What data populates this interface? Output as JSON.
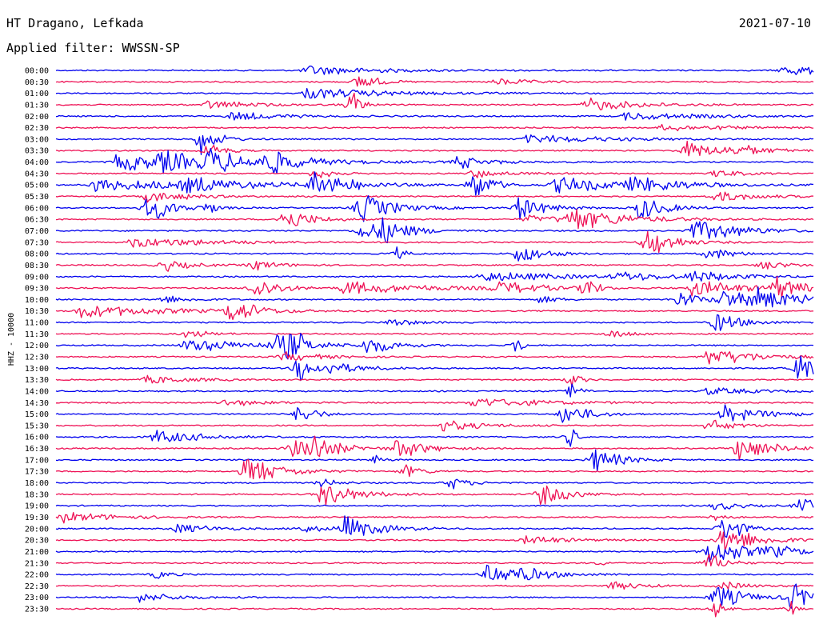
{
  "header": {
    "station": "HT Dragano, Lefkada",
    "date": "2021-07-10",
    "filter": "Applied filter: WWSSN-SP"
  },
  "chart_data": {
    "type": "line",
    "title": "HT Dragano, Lefkada",
    "ylabel": "HHZ - 10000",
    "categories": [
      "00:00",
      "00:30",
      "01:00",
      "01:30",
      "02:00",
      "02:30",
      "03:00",
      "03:30",
      "04:00",
      "04:30",
      "05:00",
      "05:30",
      "06:00",
      "06:30",
      "07:00",
      "07:30",
      "08:00",
      "08:30",
      "09:00",
      "09:30",
      "10:00",
      "10:30",
      "11:00",
      "11:30",
      "12:00",
      "12:30",
      "13:00",
      "13:30",
      "14:00",
      "14:30",
      "15:00",
      "15:30",
      "16:00",
      "16:30",
      "17:00",
      "17:30",
      "18:00",
      "18:30",
      "19:00",
      "19:30",
      "20:00",
      "20:30",
      "21:00",
      "21:30",
      "22:00",
      "22:30",
      "23:00",
      "23:30"
    ],
    "colors": [
      "#0000ee",
      "#ee1155"
    ],
    "grid": false,
    "events": [
      [
        [
          33,
          0.08,
          1.2
        ],
        [
          96,
          0.08,
          1.1
        ]
      ],
      [
        [
          40,
          0.02,
          2.5
        ],
        [
          58,
          0.04,
          0.8
        ]
      ],
      [
        [
          33,
          0.1,
          1.2
        ]
      ],
      [
        [
          39,
          0.01,
          4.0
        ],
        [
          70,
          0.06,
          1.5
        ],
        [
          20,
          0.05,
          1.0
        ]
      ],
      [
        [
          23,
          0.06,
          1.0
        ],
        [
          75,
          0.1,
          0.8
        ]
      ],
      [
        [
          80,
          0.08,
          0.8
        ]
      ],
      [
        [
          19,
          0.02,
          3.5
        ],
        [
          62,
          0.1,
          1.0
        ]
      ],
      [
        [
          20,
          0.02,
          2.0
        ],
        [
          83,
          0.05,
          2.0
        ],
        [
          90,
          0.03,
          1.0
        ]
      ],
      [
        [
          8,
          0.15,
          1.8
        ],
        [
          14,
          0.04,
          1.5
        ],
        [
          20,
          0.04,
          2.0
        ],
        [
          28,
          0.03,
          3.0
        ],
        [
          53,
          0.03,
          1.5
        ]
      ],
      [
        [
          34,
          0.02,
          1.5
        ],
        [
          55,
          0.04,
          1.0
        ],
        [
          87,
          0.03,
          1.0
        ]
      ],
      [
        [
          5,
          0.12,
          1.5
        ],
        [
          17,
          0.07,
          1.5
        ],
        [
          34,
          0.04,
          3.5
        ],
        [
          55,
          0.02,
          4.5
        ],
        [
          66,
          0.08,
          2.0
        ],
        [
          76,
          0.06,
          1.5
        ]
      ],
      [
        [
          12,
          0.05,
          1.3
        ],
        [
          87,
          0.05,
          1.2
        ]
      ],
      [
        [
          12,
          0.03,
          3.5
        ],
        [
          40,
          0.04,
          3.5
        ],
        [
          61,
          0.03,
          3.0
        ],
        [
          77,
          0.03,
          3.0
        ],
        [
          20,
          0.01,
          1.5
        ]
      ],
      [
        [
          30,
          0.03,
          3.0
        ],
        [
          68,
          0.06,
          2.5
        ],
        [
          62,
          0.08,
          0.8
        ]
      ],
      [
        [
          40,
          0.04,
          2.0
        ],
        [
          43,
          0.03,
          2.2
        ],
        [
          84,
          0.06,
          2.5
        ]
      ],
      [
        [
          10,
          0.1,
          1.2
        ],
        [
          78,
          0.03,
          4.0
        ]
      ],
      [
        [
          45,
          0.01,
          1.5
        ],
        [
          61,
          0.03,
          2.5
        ],
        [
          86,
          0.03,
          1.5
        ]
      ],
      [
        [
          14,
          0.03,
          1.5
        ],
        [
          26,
          0.03,
          1.2
        ],
        [
          93,
          0.03,
          1.2
        ]
      ],
      [
        [
          56,
          0.1,
          1.2
        ],
        [
          74,
          0.06,
          1.0
        ],
        [
          84,
          0.05,
          1.2
        ]
      ],
      [
        [
          26,
          0.03,
          2.8
        ],
        [
          38,
          0.1,
          1.5
        ],
        [
          58,
          0.05,
          1.5
        ],
        [
          70,
          0.01,
          3.5
        ],
        [
          84,
          0.06,
          2.0
        ],
        [
          95,
          0.03,
          2.5
        ]
      ],
      [
        [
          14,
          0.03,
          1.0
        ],
        [
          64,
          0.02,
          1.0
        ],
        [
          82,
          0.03,
          2.0
        ],
        [
          88,
          0.04,
          2.0
        ],
        [
          92,
          0.07,
          2.0
        ]
      ],
      [
        [
          3,
          0.1,
          1.5
        ],
        [
          23,
          0.03,
          3.0
        ]
      ],
      [
        [
          44,
          0.03,
          1.0
        ],
        [
          87,
          0.03,
          2.5
        ]
      ],
      [
        [
          17,
          0.03,
          1.0
        ],
        [
          73,
          0.03,
          1.0
        ]
      ],
      [
        [
          17,
          0.08,
          1.5
        ],
        [
          29,
          0.04,
          2.0
        ],
        [
          31,
          0.01,
          5.0
        ],
        [
          41,
          0.03,
          2.0
        ],
        [
          61,
          0.005,
          3.0
        ]
      ],
      [
        [
          30,
          0.05,
          1.0
        ],
        [
          86,
          0.06,
          2.0
        ]
      ],
      [
        [
          32,
          0.02,
          3.5
        ],
        [
          36,
          0.05,
          1.0
        ],
        [
          98,
          0.03,
          3.5
        ]
      ],
      [
        [
          12,
          0.05,
          1.0
        ],
        [
          68,
          0.01,
          2.0
        ]
      ],
      [
        [
          68,
          0.01,
          2.0
        ],
        [
          86,
          0.05,
          1.0
        ]
      ],
      [
        [
          55,
          0.08,
          1.2
        ],
        [
          22,
          0.05,
          0.8
        ]
      ],
      [
        [
          32,
          0.02,
          2.5
        ],
        [
          67,
          0.03,
          2.5
        ],
        [
          88,
          0.05,
          2.0
        ]
      ],
      [
        [
          51,
          0.05,
          1.2
        ],
        [
          86,
          0.03,
          1.5
        ]
      ],
      [
        [
          13,
          0.05,
          1.8
        ],
        [
          68,
          0.005,
          4.0
        ]
      ],
      [
        [
          31,
          0.05,
          2.0
        ],
        [
          34,
          0.02,
          3.0
        ],
        [
          45,
          0.03,
          2.5
        ],
        [
          90,
          0.04,
          3.0
        ]
      ],
      [
        [
          42,
          0.01,
          1.2
        ],
        [
          71,
          0.03,
          3.0
        ]
      ],
      [
        [
          25,
          0.04,
          3.5
        ],
        [
          46,
          0.02,
          1.5
        ]
      ],
      [
        [
          35,
          0.02,
          1.0
        ],
        [
          52,
          0.02,
          1.5
        ]
      ],
      [
        [
          35,
          0.04,
          2.8
        ],
        [
          64,
          0.03,
          3.0
        ]
      ],
      [
        [
          98,
          0.04,
          1.5
        ],
        [
          87,
          0.03,
          1.0
        ]
      ],
      [
        [
          1,
          0.06,
          1.2
        ],
        [
          87,
          0.01,
          1.5
        ]
      ],
      [
        [
          16,
          0.04,
          1.2
        ],
        [
          32,
          0.03,
          1.0
        ],
        [
          38,
          0.04,
          2.8
        ],
        [
          88,
          0.02,
          4.0
        ]
      ],
      [
        [
          88,
          0.04,
          3.5
        ],
        [
          62,
          0.05,
          1.0
        ]
      ],
      [
        [
          86,
          0.05,
          3.0
        ],
        [
          94,
          0.04,
          1.0
        ]
      ],
      [
        [
          86,
          0.02,
          2.5
        ],
        [
          72,
          0.005,
          1.0
        ]
      ],
      [
        [
          57,
          0.04,
          2.5
        ],
        [
          13,
          0.02,
          1.0
        ],
        [
          61,
          0.04,
          1.0
        ]
      ],
      [
        [
          73,
          0.04,
          1.0
        ],
        [
          88,
          0.03,
          1.0
        ]
      ],
      [
        [
          11,
          0.05,
          1.0
        ],
        [
          87,
          0.03,
          3.5
        ],
        [
          97,
          0.03,
          3.5
        ]
      ],
      [
        [
          87,
          0.01,
          2.0
        ],
        [
          97,
          0.005,
          2.5
        ]
      ]
    ]
  }
}
